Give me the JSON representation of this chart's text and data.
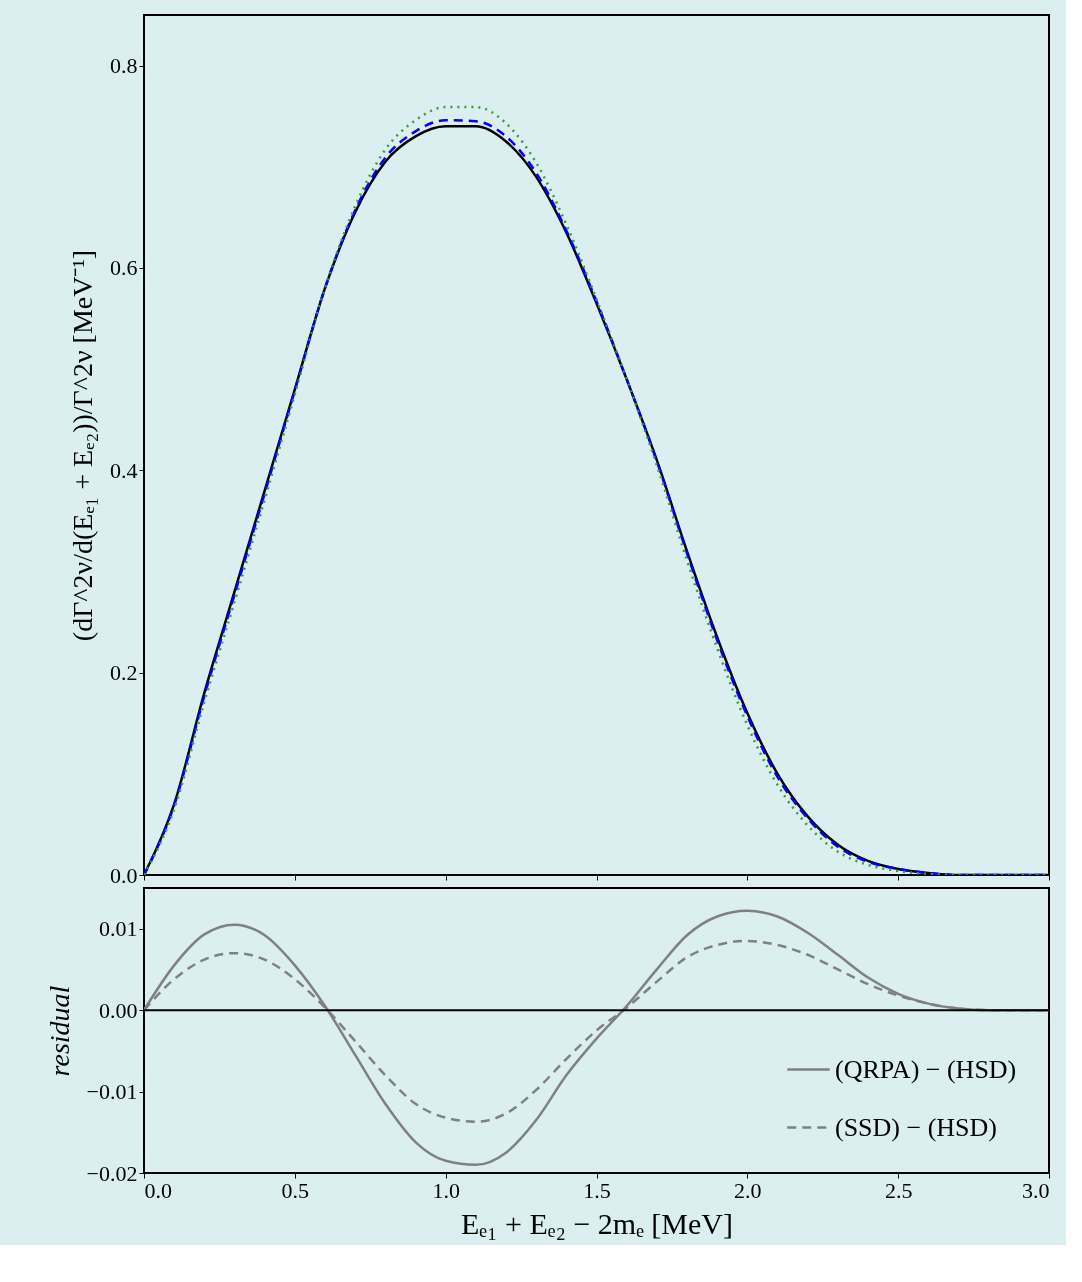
{
  "chart_data": [
    {
      "type": "line",
      "ylabel": "(dΓ^2ν/d(Eₑ₁ + Eₑ₂))/Γ^2ν [MeV⁻¹]",
      "x": [
        0,
        0.1,
        0.2,
        0.3,
        0.4,
        0.5,
        0.6,
        0.7,
        0.8,
        0.9,
        1.0,
        1.1,
        1.2,
        1.3,
        1.4,
        1.5,
        1.6,
        1.7,
        1.8,
        1.9,
        2.0,
        2.1,
        2.2,
        2.3,
        2.4,
        2.5,
        2.6,
        2.7,
        2.8,
        2.9,
        3.0
      ],
      "series": [
        {
          "color": "#000000",
          "line_style": "solid",
          "values": [
            0,
            0.07,
            0.18,
            0.28,
            0.38,
            0.48,
            0.58,
            0.655,
            0.705,
            0.73,
            0.74,
            0.74,
            0.725,
            0.69,
            0.635,
            0.565,
            0.49,
            0.41,
            0.32,
            0.235,
            0.16,
            0.1,
            0.058,
            0.03,
            0.014,
            0.006,
            0.002,
            0,
            0,
            0,
            0
          ]
        },
        {
          "color": "#0000ff",
          "line_style": "dashed",
          "values": [
            0,
            0.069,
            0.177,
            0.277,
            0.377,
            0.479,
            0.58,
            0.657,
            0.709,
            0.735,
            0.746,
            0.745,
            0.73,
            0.694,
            0.637,
            0.567,
            0.49,
            0.409,
            0.318,
            0.232,
            0.157,
            0.097,
            0.056,
            0.028,
            0.013,
            0.006,
            0.002,
            0,
            0,
            0,
            0
          ]
        },
        {
          "color": "#3a9a3a",
          "line_style": "dotted",
          "values": [
            0,
            0.065,
            0.171,
            0.27,
            0.371,
            0.475,
            0.58,
            0.661,
            0.717,
            0.746,
            0.759,
            0.759,
            0.743,
            0.704,
            0.643,
            0.569,
            0.49,
            0.405,
            0.311,
            0.224,
            0.148,
            0.089,
            0.049,
            0.023,
            0.01,
            0.004,
            0.001,
            0,
            0,
            0,
            0
          ]
        }
      ],
      "xlim": [
        0,
        3.0
      ],
      "ylim": [
        0,
        0.85
      ],
      "xticks": [
        0,
        0.5,
        1,
        1.5,
        2,
        2.5,
        3
      ],
      "yticks": [
        {
          "value": 0,
          "label": "0.0"
        },
        0.2,
        0.4,
        0.6,
        0.8
      ],
      "tick_labels": "y",
      "grid": false,
      "legend": false
    },
    {
      "type": "line",
      "xlabel": "Eₑ₁ + Eₑ₂ − 2mₑ [MeV]",
      "ylabel": "residual",
      "x": [
        0,
        0.1,
        0.2,
        0.3,
        0.4,
        0.5,
        0.6,
        0.7,
        0.8,
        0.9,
        1.0,
        1.1,
        1.2,
        1.3,
        1.4,
        1.5,
        1.6,
        1.7,
        1.8,
        1.9,
        2.0,
        2.1,
        2.2,
        2.3,
        2.4,
        2.5,
        2.6,
        2.7,
        2.8,
        2.9,
        3.0
      ],
      "series": [
        {
          "name": "(QRPA) − (HSD)",
          "color": "#808080",
          "line_style": "solid",
          "values": [
            0,
            0.0055,
            0.0093,
            0.0105,
            0.0092,
            0.0055,
            0.0005,
            -0.0055,
            -0.0115,
            -0.0162,
            -0.0185,
            -0.019,
            -0.0175,
            -0.0135,
            -0.008,
            -0.0035,
            0.0005,
            0.005,
            0.0092,
            0.0115,
            0.0122,
            0.0115,
            0.0095,
            0.0068,
            0.004,
            0.002,
            0.0008,
            0.0002,
            0,
            0,
            0
          ]
        },
        {
          "name": "(SSD) − (HSD)",
          "color": "#808080",
          "line_style": "dashed",
          "values": [
            0,
            0.0038,
            0.0062,
            0.007,
            0.0062,
            0.0038,
            0.0003,
            -0.0038,
            -0.008,
            -0.0115,
            -0.0132,
            -0.0137,
            -0.0127,
            -0.0098,
            -0.006,
            -0.0025,
            0.0003,
            0.0035,
            0.0065,
            0.008,
            0.0085,
            0.008,
            0.0068,
            0.005,
            0.0032,
            0.0018,
            0.0008,
            0.0002,
            0,
            0,
            0
          ]
        }
      ],
      "ref_lines": [
        {
          "axis": "y",
          "value": 0,
          "color": "#000000",
          "line_style": "solid"
        }
      ],
      "xlim": [
        0,
        3.0
      ],
      "ylim": [
        -0.02,
        0.015
      ],
      "xticks": [
        {
          "value": 0,
          "label": "0.0"
        },
        0.5,
        {
          "value": 1,
          "label": "1.0"
        },
        1.5,
        {
          "value": 2,
          "label": "2.0"
        },
        2.5,
        {
          "value": 3,
          "label": "3.0"
        }
      ],
      "yticks": [
        {
          "value": -0.02,
          "label": "−0.02"
        },
        {
          "value": -0.01,
          "label": "−0.01"
        },
        {
          "value": 0,
          "label": "0.00"
        },
        0.01
      ],
      "grid": false,
      "legend": "bottom right"
    }
  ]
}
